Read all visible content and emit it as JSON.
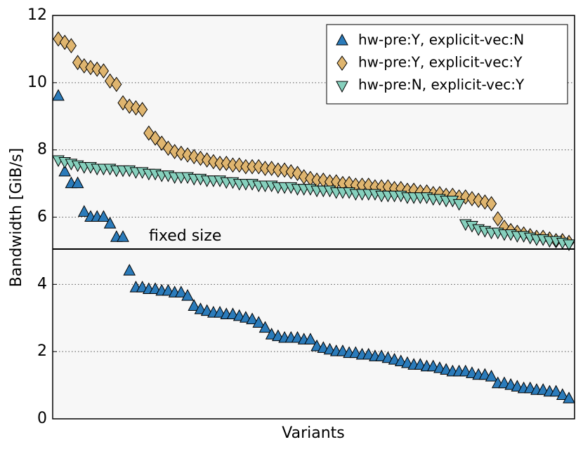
{
  "chart_data": {
    "type": "scatter",
    "ylabel": "Bandwidth [GiB/s]",
    "xlabel": "Variants",
    "ylim": [
      0,
      12
    ],
    "yticks": [
      0,
      2,
      4,
      6,
      8,
      10,
      12
    ],
    "grid": true,
    "legend": "upper right",
    "reference_line": {
      "value": 5.05,
      "label": "fixed size"
    },
    "series": [
      {
        "name": "hw-pre:Y, explicit-vec:N",
        "color": "#2b7bba",
        "marker": "triangle-up",
        "values": [
          9.6,
          7.35,
          7.0,
          7.0,
          6.15,
          6.0,
          6.0,
          6.0,
          5.8,
          5.4,
          5.4,
          4.4,
          3.9,
          3.9,
          3.85,
          3.85,
          3.8,
          3.8,
          3.75,
          3.75,
          3.65,
          3.35,
          3.25,
          3.2,
          3.15,
          3.15,
          3.1,
          3.1,
          3.05,
          3.0,
          2.95,
          2.85,
          2.7,
          2.5,
          2.45,
          2.4,
          2.4,
          2.4,
          2.35,
          2.35,
          2.15,
          2.1,
          2.05,
          2.0,
          2.0,
          1.95,
          1.95,
          1.9,
          1.9,
          1.85,
          1.85,
          1.8,
          1.75,
          1.7,
          1.65,
          1.6,
          1.6,
          1.55,
          1.55,
          1.5,
          1.45,
          1.4,
          1.4,
          1.4,
          1.35,
          1.3,
          1.3,
          1.25,
          1.05,
          1.05,
          1.0,
          0.95,
          0.9,
          0.9,
          0.85,
          0.85,
          0.8,
          0.8,
          0.7,
          0.6
        ]
      },
      {
        "name": "hw-pre:Y, explicit-vec:Y",
        "color": "#dfb56f",
        "marker": "diamond",
        "values": [
          11.3,
          11.2,
          11.1,
          10.6,
          10.5,
          10.45,
          10.4,
          10.35,
          10.05,
          9.95,
          9.4,
          9.3,
          9.25,
          9.2,
          8.5,
          8.35,
          8.2,
          8.05,
          7.95,
          7.9,
          7.85,
          7.8,
          7.75,
          7.7,
          7.65,
          7.6,
          7.6,
          7.55,
          7.55,
          7.5,
          7.5,
          7.5,
          7.45,
          7.45,
          7.4,
          7.4,
          7.35,
          7.3,
          7.2,
          7.15,
          7.1,
          7.1,
          7.05,
          7.05,
          7.0,
          7.0,
          6.95,
          6.95,
          6.95,
          6.9,
          6.9,
          6.9,
          6.85,
          6.85,
          6.8,
          6.8,
          6.75,
          6.75,
          6.7,
          6.7,
          6.65,
          6.65,
          6.6,
          6.6,
          6.55,
          6.5,
          6.45,
          6.4,
          5.95,
          5.7,
          5.6,
          5.55,
          5.5,
          5.45,
          5.4,
          5.4,
          5.35,
          5.3,
          5.3,
          5.25
        ]
      },
      {
        "name": "hw-pre:N, explicit-vec:Y",
        "color": "#86d0bd",
        "marker": "triangle-down",
        "values": [
          7.7,
          7.65,
          7.6,
          7.55,
          7.5,
          7.5,
          7.45,
          7.45,
          7.45,
          7.4,
          7.4,
          7.4,
          7.35,
          7.35,
          7.3,
          7.3,
          7.25,
          7.25,
          7.2,
          7.2,
          7.2,
          7.15,
          7.15,
          7.1,
          7.1,
          7.1,
          7.05,
          7.05,
          7.0,
          7.0,
          7.0,
          6.95,
          6.95,
          6.95,
          6.9,
          6.9,
          6.9,
          6.85,
          6.85,
          6.85,
          6.8,
          6.8,
          6.8,
          6.75,
          6.75,
          6.75,
          6.7,
          6.7,
          6.7,
          6.7,
          6.65,
          6.65,
          6.65,
          6.65,
          6.6,
          6.6,
          6.6,
          6.6,
          6.55,
          6.55,
          6.5,
          6.5,
          6.4,
          5.8,
          5.75,
          5.65,
          5.6,
          5.55,
          5.55,
          5.5,
          5.5,
          5.45,
          5.45,
          5.4,
          5.35,
          5.35,
          5.3,
          5.3,
          5.25,
          5.2
        ]
      }
    ]
  }
}
